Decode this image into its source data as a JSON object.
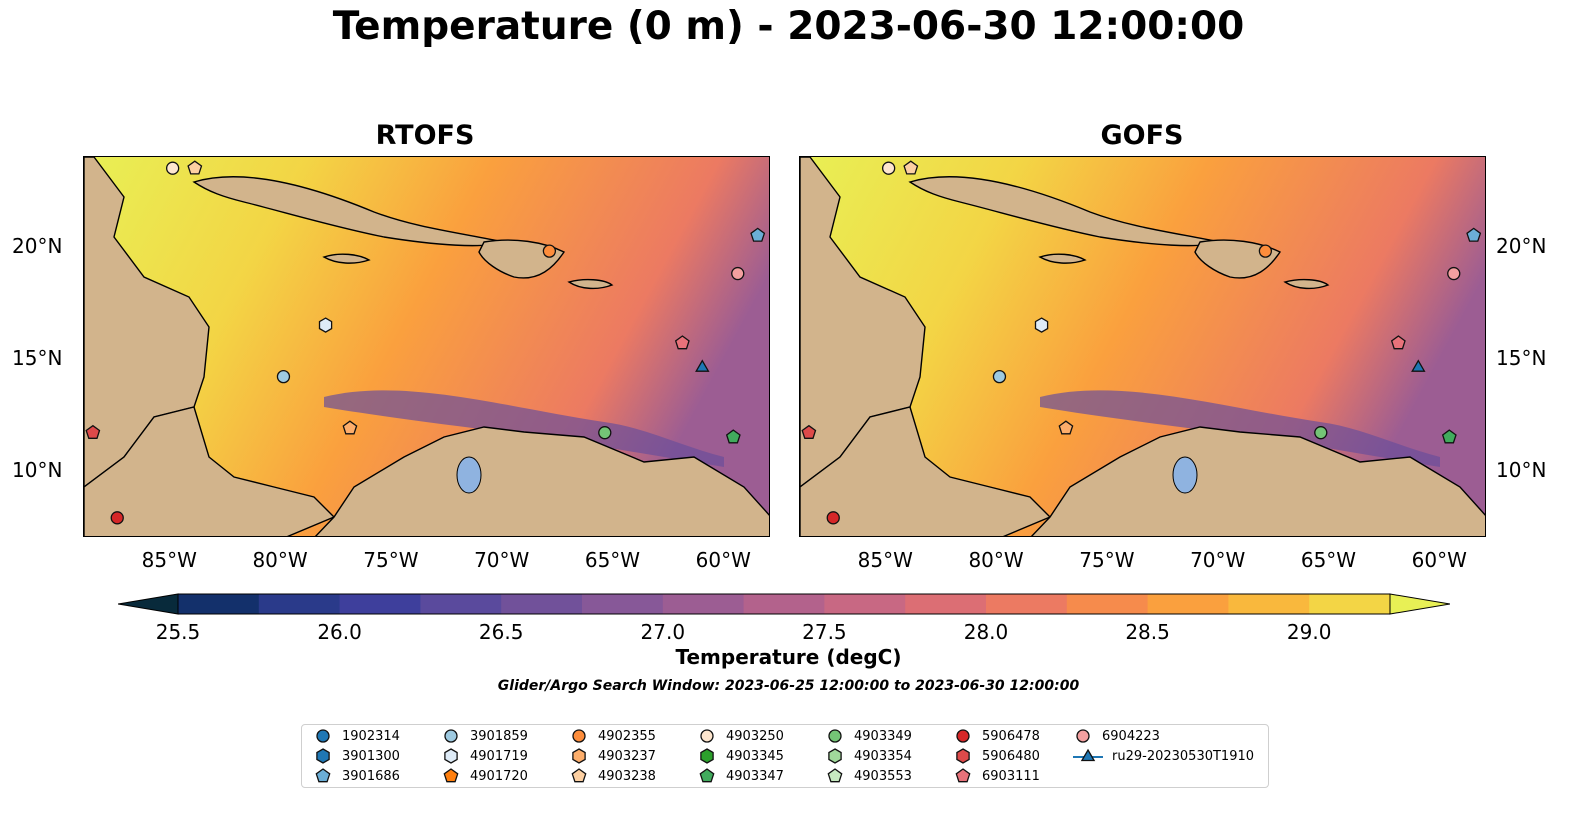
{
  "title": "Temperature (0 m) - 2023-06-30 12:00:00",
  "panels": [
    {
      "title": "RTOFS"
    },
    {
      "title": "GOFS"
    }
  ],
  "lon_ticks": [
    "85°W",
    "80°W",
    "75°W",
    "70°W",
    "65°W",
    "60°W"
  ],
  "lat_ticks": [
    "20°N",
    "15°N",
    "10°N"
  ],
  "map_extent": {
    "lon": [
      -89,
      -58
    ],
    "lat": [
      7,
      24
    ]
  },
  "colorbar": {
    "label": "Temperature (degC)",
    "ticks": [
      "25.5",
      "26.0",
      "26.5",
      "27.0",
      "27.5",
      "28.0",
      "28.5",
      "29.0"
    ],
    "range": [
      25.5,
      29.25
    ],
    "colors": [
      "#082a3b",
      "#13306b",
      "#2a3a8a",
      "#3e3f9c",
      "#5a4a9d",
      "#71519a",
      "#875898",
      "#9c5d93",
      "#b3628c",
      "#c86883",
      "#dc6e74",
      "#ec7a62",
      "#f68b4c",
      "#faa03e",
      "#f9b83d",
      "#f3d545",
      "#e8f055"
    ]
  },
  "caption": "Glider/Argo Search Window: 2023-06-25 12:00:00 to 2023-06-30 12:00:00",
  "floats": [
    {
      "id": "1902314",
      "marker": "circle",
      "color": "#1f77b4"
    },
    {
      "id": "3901300",
      "marker": "hexagon",
      "color": "#1f77b4"
    },
    {
      "id": "3901686",
      "marker": "pentagon",
      "color": "#6baed6"
    },
    {
      "id": "3901859",
      "marker": "circle",
      "color": "#9ecae1"
    },
    {
      "id": "4901719",
      "marker": "hexagon",
      "color": "#deebf7"
    },
    {
      "id": "4901720",
      "marker": "pentagon",
      "color": "#ff7f0e"
    },
    {
      "id": "4902355",
      "marker": "circle",
      "color": "#fd8d3c"
    },
    {
      "id": "4903237",
      "marker": "hexagon",
      "color": "#fdae6b"
    },
    {
      "id": "4903238",
      "marker": "pentagon",
      "color": "#fdd0a2"
    },
    {
      "id": "4903250",
      "marker": "circle",
      "color": "#fee6ce"
    },
    {
      "id": "4903345",
      "marker": "hexagon",
      "color": "#2ca02c"
    },
    {
      "id": "4903347",
      "marker": "pentagon",
      "color": "#41ab5d"
    },
    {
      "id": "4903349",
      "marker": "circle",
      "color": "#74c476"
    },
    {
      "id": "4903354",
      "marker": "hexagon",
      "color": "#a1d99b"
    },
    {
      "id": "4903553",
      "marker": "pentagon",
      "color": "#c7e9c0"
    },
    {
      "id": "5906478",
      "marker": "circle",
      "color": "#d62728"
    },
    {
      "id": "5906480",
      "marker": "hexagon",
      "color": "#de4a4a"
    },
    {
      "id": "6903111",
      "marker": "pentagon",
      "color": "#e8727a"
    },
    {
      "id": "6904223",
      "marker": "circle",
      "color": "#f4a0a0"
    },
    {
      "id": "ru29-20230530T1910",
      "marker": "triangle-line",
      "color": "#1f77b4"
    }
  ],
  "map_points": [
    {
      "lon": -85,
      "lat": 23.5,
      "color": "#fee6ce",
      "marker": "circle"
    },
    {
      "lon": -84,
      "lat": 23.5,
      "color": "#fdd0a2",
      "marker": "pentagon"
    },
    {
      "lon": -68,
      "lat": 19.8,
      "color": "#fd8d3c",
      "marker": "circle"
    },
    {
      "lon": -59.5,
      "lat": 18.8,
      "color": "#f4a0a0",
      "marker": "circle"
    },
    {
      "lon": -58.6,
      "lat": 20.5,
      "color": "#6baed6",
      "marker": "pentagon"
    },
    {
      "lon": -78.1,
      "lat": 16.5,
      "color": "#deebf7",
      "marker": "hexagon"
    },
    {
      "lon": -80,
      "lat": 14.2,
      "color": "#9ecae1",
      "marker": "circle"
    },
    {
      "lon": -62,
      "lat": 15.7,
      "color": "#e8727a",
      "marker": "pentagon"
    },
    {
      "lon": -61.1,
      "lat": 14.6,
      "color": "#1f77b4",
      "marker": "triangle"
    },
    {
      "lon": -77,
      "lat": 11.9,
      "color": "#fdae6b",
      "marker": "pentagon"
    },
    {
      "lon": -65.5,
      "lat": 11.7,
      "color": "#74c476",
      "marker": "circle"
    },
    {
      "lon": -59.7,
      "lat": 11.5,
      "color": "#41ab5d",
      "marker": "pentagon"
    },
    {
      "lon": -88.6,
      "lat": 11.7,
      "color": "#de4a4a",
      "marker": "pentagon"
    },
    {
      "lon": -87.5,
      "lat": 7.9,
      "color": "#d62728",
      "marker": "circle"
    }
  ]
}
